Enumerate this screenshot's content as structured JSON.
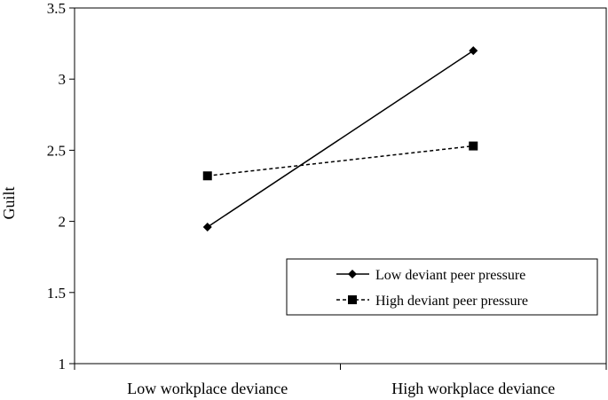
{
  "chart_data": {
    "type": "line",
    "title": "",
    "xlabel": "",
    "ylabel": "Guilt",
    "categories": [
      "Low workplace deviance",
      "High workplace deviance"
    ],
    "ylim": [
      1,
      3.5
    ],
    "yticks": [
      "1",
      "1.5",
      "2",
      "2.5",
      "3",
      "3.5"
    ],
    "grid": false,
    "legend_position": "bottom-right",
    "series": [
      {
        "name": "Low deviant peer pressure",
        "values": [
          1.96,
          3.2
        ],
        "line_style": "solid",
        "marker": "diamond",
        "color": "#000000"
      },
      {
        "name": "High deviant peer pressure",
        "values": [
          2.32,
          2.53
        ],
        "line_style": "dashed",
        "marker": "square",
        "color": "#000000"
      }
    ]
  }
}
